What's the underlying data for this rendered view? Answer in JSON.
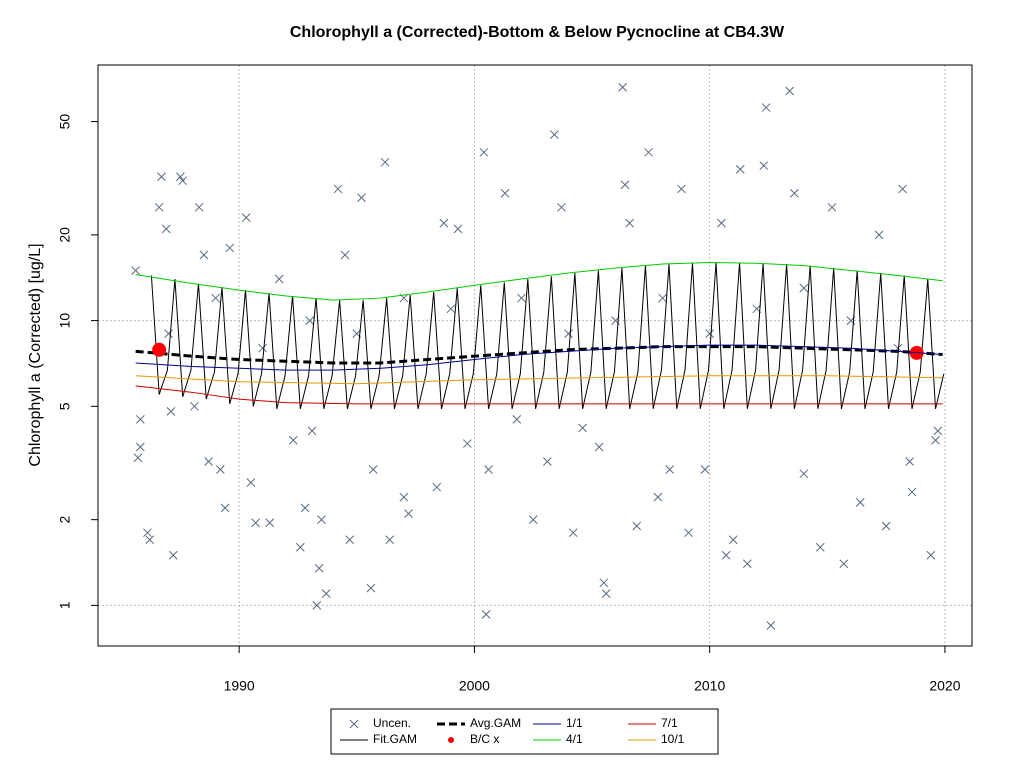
{
  "chart_data": {
    "type": "line",
    "title": "Chlorophyll a (Corrected)-Bottom & Below Pycnocline at CB4.3W",
    "y_label": "Chlorophyll a (Corrected) [ug/L]",
    "xlim": [
      1984.0,
      2021.15
    ],
    "xticks": [
      1990,
      2000,
      2010,
      2020
    ],
    "ylim": [
      0.72,
      79
    ],
    "yticks": [
      1,
      2,
      5,
      10,
      20,
      50
    ],
    "log_y": true,
    "grid_x": [
      1990,
      2000,
      2010,
      2020
    ],
    "grid_y": [
      1,
      10
    ],
    "legend": "bottom",
    "series": [
      {
        "name": "Uncen.",
        "type": "scatter",
        "marker": "x",
        "color": "#5a6a82",
        "x": [
          1985.6,
          1985.8,
          1985.7,
          1985.8,
          1986.1,
          1986.2,
          1986.6,
          1986.7,
          1986.9,
          1987.1,
          1987.2,
          1987.5,
          1987.6,
          1988.1,
          1988.3,
          1988.5,
          1988.7,
          1989.2,
          1989.4,
          1989.6,
          1990.3,
          1990.5,
          1990.7,
          1991.3,
          1991.7,
          1992.3,
          1992.6,
          1992.8,
          1993.1,
          1993.3,
          1993.4,
          1993.5,
          1993.7,
          1994.2,
          1994.5,
          1994.7,
          1995.2,
          1995.6,
          1995.7,
          1996.2,
          1996.4,
          1997.0,
          1997.2,
          1998.4,
          1998.7,
          1999.3,
          1999.7,
          2000.4,
          2000.6,
          2000.5,
          2001.3,
          2001.8,
          2002.5,
          2003.1,
          2003.4,
          2003.7,
          2004.2,
          2004.6,
          2005.3,
          2005.5,
          2005.6,
          2006.3,
          2006.4,
          2006.6,
          2006.9,
          2007.4,
          2007.8,
          2008.3,
          2008.8,
          2009.1,
          2009.8,
          2010.5,
          2010.7,
          2011.0,
          2011.3,
          2011.6,
          2012.3,
          2012.4,
          2012.6,
          2013.4,
          2013.6,
          2014.0,
          2014.7,
          2015.2,
          2015.7,
          2016.4,
          2017.2,
          2017.5,
          2018.2,
          2018.5,
          2018.6,
          2019.4,
          2019.6,
          2019.7,
          1987.0,
          1989.0,
          1991.0,
          1993.0,
          1995.0,
          1997.0,
          1999.0,
          2002.0,
          2004.0,
          2006.0,
          2008.0,
          2010.0,
          2012.0,
          2014.0,
          2016.0,
          2018.0
        ],
        "values": [
          15,
          4.5,
          3.3,
          3.6,
          1.8,
          1.7,
          25,
          32,
          21,
          4.8,
          1.5,
          32,
          31,
          5,
          25,
          17,
          3.2,
          3,
          2.2,
          18,
          23,
          2.7,
          1.95,
          1.95,
          14,
          3.8,
          1.6,
          2.2,
          4.1,
          1.0,
          1.35,
          2.0,
          1.1,
          29,
          17,
          1.7,
          27,
          1.15,
          3.0,
          36,
          1.7,
          2.4,
          2.1,
          2.6,
          22,
          21,
          3.7,
          39,
          3.0,
          0.93,
          28,
          4.5,
          2.0,
          3.2,
          45,
          25,
          1.8,
          4.2,
          3.6,
          1.2,
          1.1,
          66,
          30,
          22,
          1.9,
          39,
          2.4,
          3.0,
          29,
          1.8,
          3.0,
          22,
          1.5,
          1.7,
          34,
          1.4,
          35,
          56,
          0.85,
          64,
          28,
          2.9,
          1.6,
          25,
          1.4,
          2.3,
          20,
          1.9,
          29,
          3.2,
          2.5,
          1.5,
          3.8,
          4.1,
          9,
          12,
          8,
          10,
          9,
          12,
          11,
          12,
          9,
          10,
          12,
          9,
          11,
          13,
          10,
          8
        ]
      },
      {
        "name": "Fit.GAM",
        "type": "line",
        "color": "#000000",
        "width": 1,
        "x": [
          1986.27,
          1986.6,
          1986.95,
          1987.27,
          1987.6,
          1987.95,
          1988.27,
          1988.6,
          1988.95,
          1989.27,
          1989.6,
          1989.95,
          1990.27,
          1990.6,
          1990.95,
          1991.27,
          1991.6,
          1991.95,
          1992.27,
          1992.6,
          1992.95,
          1993.27,
          1993.6,
          1993.95,
          1994.27,
          1994.6,
          1994.95,
          1995.27,
          1995.6,
          1995.95,
          1996.27,
          1996.6,
          1996.95,
          1997.27,
          1997.6,
          1997.95,
          1998.27,
          1998.6,
          1998.95,
          1999.27,
          1999.6,
          1999.95,
          2000.27,
          2000.6,
          2000.95,
          2001.27,
          2001.6,
          2001.95,
          2002.27,
          2002.6,
          2002.95,
          2003.27,
          2003.6,
          2003.95,
          2004.27,
          2004.6,
          2004.95,
          2005.27,
          2005.6,
          2005.95,
          2006.27,
          2006.6,
          2006.95,
          2007.27,
          2007.6,
          2007.95,
          2008.27,
          2008.6,
          2008.95,
          2009.27,
          2009.6,
          2009.95,
          2010.27,
          2010.6,
          2010.95,
          2011.27,
          2011.6,
          2011.95,
          2012.27,
          2012.6,
          2012.95,
          2013.27,
          2013.6,
          2013.95,
          2014.27,
          2014.6,
          2014.95,
          2015.27,
          2015.6,
          2015.95,
          2016.27,
          2016.6,
          2016.95,
          2017.27,
          2017.6,
          2017.95,
          2018.27,
          2018.6,
          2018.95,
          2019.27,
          2019.6,
          2019.95
        ],
        "values": [
          14.4,
          5.5,
          6.7,
          14.0,
          5.4,
          6.7,
          13.5,
          5.3,
          6.6,
          13.1,
          5.1,
          6.5,
          12.8,
          5.0,
          6.5,
          12.5,
          4.9,
          6.4,
          12.2,
          4.9,
          6.4,
          12.0,
          4.9,
          6.4,
          11.8,
          4.9,
          6.4,
          11.8,
          4.9,
          6.4,
          12.0,
          4.9,
          6.4,
          12.3,
          4.9,
          6.5,
          12.6,
          4.9,
          6.5,
          13.0,
          4.9,
          6.5,
          13.3,
          4.9,
          6.5,
          13.6,
          4.9,
          6.5,
          14.0,
          4.9,
          6.6,
          14.3,
          4.9,
          6.6,
          14.7,
          4.9,
          6.6,
          15.0,
          4.9,
          6.6,
          15.3,
          4.9,
          6.6,
          15.6,
          4.9,
          6.7,
          15.8,
          4.9,
          6.7,
          15.9,
          4.9,
          6.7,
          16.0,
          4.9,
          6.7,
          16.0,
          4.9,
          6.7,
          15.9,
          4.9,
          6.7,
          15.8,
          4.9,
          6.7,
          15.6,
          4.9,
          6.7,
          15.3,
          4.9,
          6.6,
          15.0,
          4.9,
          6.6,
          14.7,
          4.9,
          6.6,
          14.4,
          4.9,
          6.6,
          14.0,
          4.9,
          6.5
        ]
      },
      {
        "name": "Avg.GAM",
        "type": "line",
        "color": "#000000",
        "width": 3,
        "dash": true,
        "x": [
          1985.6,
          1988,
          1990,
          1992,
          1994,
          1996,
          1998,
          2000,
          2002,
          2004,
          2006,
          2008,
          2010,
          2012,
          2014,
          2016,
          2018,
          2019.9
        ],
        "values": [
          7.8,
          7.5,
          7.3,
          7.2,
          7.1,
          7.1,
          7.3,
          7.5,
          7.7,
          7.9,
          8.0,
          8.1,
          8.1,
          8.1,
          8.0,
          7.9,
          7.8,
          7.6
        ]
      },
      {
        "name": "B/C x",
        "type": "scatter",
        "marker": "circle",
        "color": "#ff0000",
        "x": [
          1986.6,
          2018.8
        ],
        "values": [
          7.9,
          7.7
        ]
      },
      {
        "name": "1/1",
        "type": "line",
        "color": "#00008b",
        "width": 1,
        "x": [
          1985.6,
          1988,
          1990,
          1992,
          1994,
          1996,
          1998,
          2000,
          2002,
          2004,
          2006,
          2008,
          2010,
          2012,
          2014,
          2016,
          2018,
          2019.9
        ],
        "values": [
          7.1,
          6.9,
          6.8,
          6.7,
          6.7,
          6.8,
          7.0,
          7.3,
          7.6,
          7.8,
          8.0,
          8.1,
          8.2,
          8.2,
          8.1,
          8.0,
          7.8,
          7.6
        ]
      },
      {
        "name": "4/1",
        "type": "line",
        "color": "#00cc00",
        "width": 1,
        "x": [
          1985.6,
          1988,
          1990,
          1992,
          1994,
          1996,
          1998,
          2000,
          2002,
          2004,
          2006,
          2008,
          2010,
          2012,
          2014,
          2016,
          2018,
          2019.9
        ],
        "values": [
          14.5,
          13.5,
          12.8,
          12.2,
          11.8,
          12.0,
          12.6,
          13.3,
          14.0,
          14.7,
          15.3,
          15.8,
          16.0,
          15.9,
          15.6,
          15.0,
          14.4,
          13.8
        ]
      },
      {
        "name": "7/1",
        "type": "line",
        "color": "#cc0000",
        "width": 1,
        "x": [
          1985.6,
          1988,
          1990,
          1992,
          1995,
          2000,
          2005,
          2010,
          2015,
          2019.9
        ],
        "values": [
          5.9,
          5.6,
          5.3,
          5.15,
          5.1,
          5.1,
          5.1,
          5.1,
          5.1,
          5.1
        ]
      },
      {
        "name": "10/1",
        "type": "line",
        "color": "#e69900",
        "width": 1,
        "x": [
          1985.6,
          1990,
          1995,
          2000,
          2005,
          2010,
          2015,
          2019.9
        ],
        "values": [
          6.4,
          6.1,
          6.0,
          6.2,
          6.3,
          6.4,
          6.4,
          6.3
        ]
      }
    ]
  }
}
